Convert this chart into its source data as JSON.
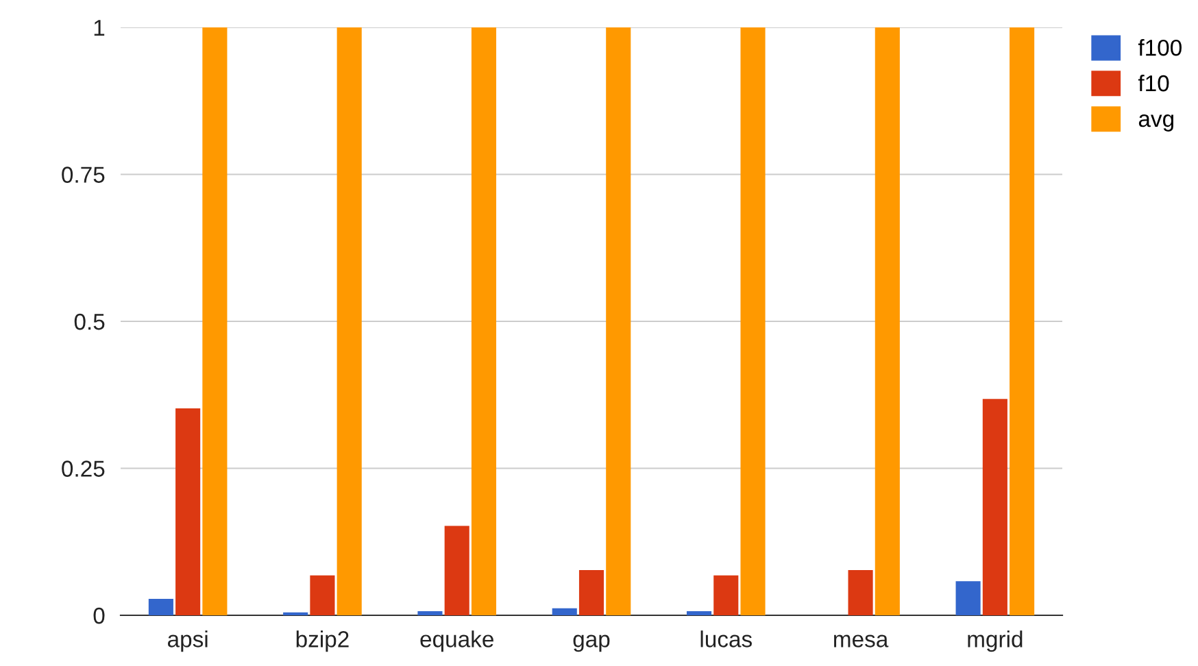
{
  "chart_data": {
    "type": "bar",
    "categories": [
      "apsi",
      "bzip2",
      "equake",
      "gap",
      "lucas",
      "mesa",
      "mgrid"
    ],
    "series": [
      {
        "name": "f100",
        "color": "#3366cc",
        "values": [
          0.028,
          0.005,
          0.007,
          0.012,
          0.007,
          0,
          0.058
        ]
      },
      {
        "name": "f10",
        "color": "#dc3912",
        "values": [
          0.352,
          0.068,
          0.152,
          0.077,
          0.068,
          0.077,
          0.368
        ]
      },
      {
        "name": "avg",
        "color": "#ff9900",
        "values": [
          1,
          1,
          1,
          1,
          1,
          1,
          1
        ]
      }
    ],
    "ylim": [
      0,
      1
    ],
    "yticks": [
      0,
      {
        "value": 0.25,
        "label": "0.25"
      },
      {
        "value": 0.5,
        "label": "0.5"
      },
      {
        "value": 0.75,
        "label": "0.75"
      },
      1
    ],
    "grid": "y",
    "legend": "top right"
  }
}
